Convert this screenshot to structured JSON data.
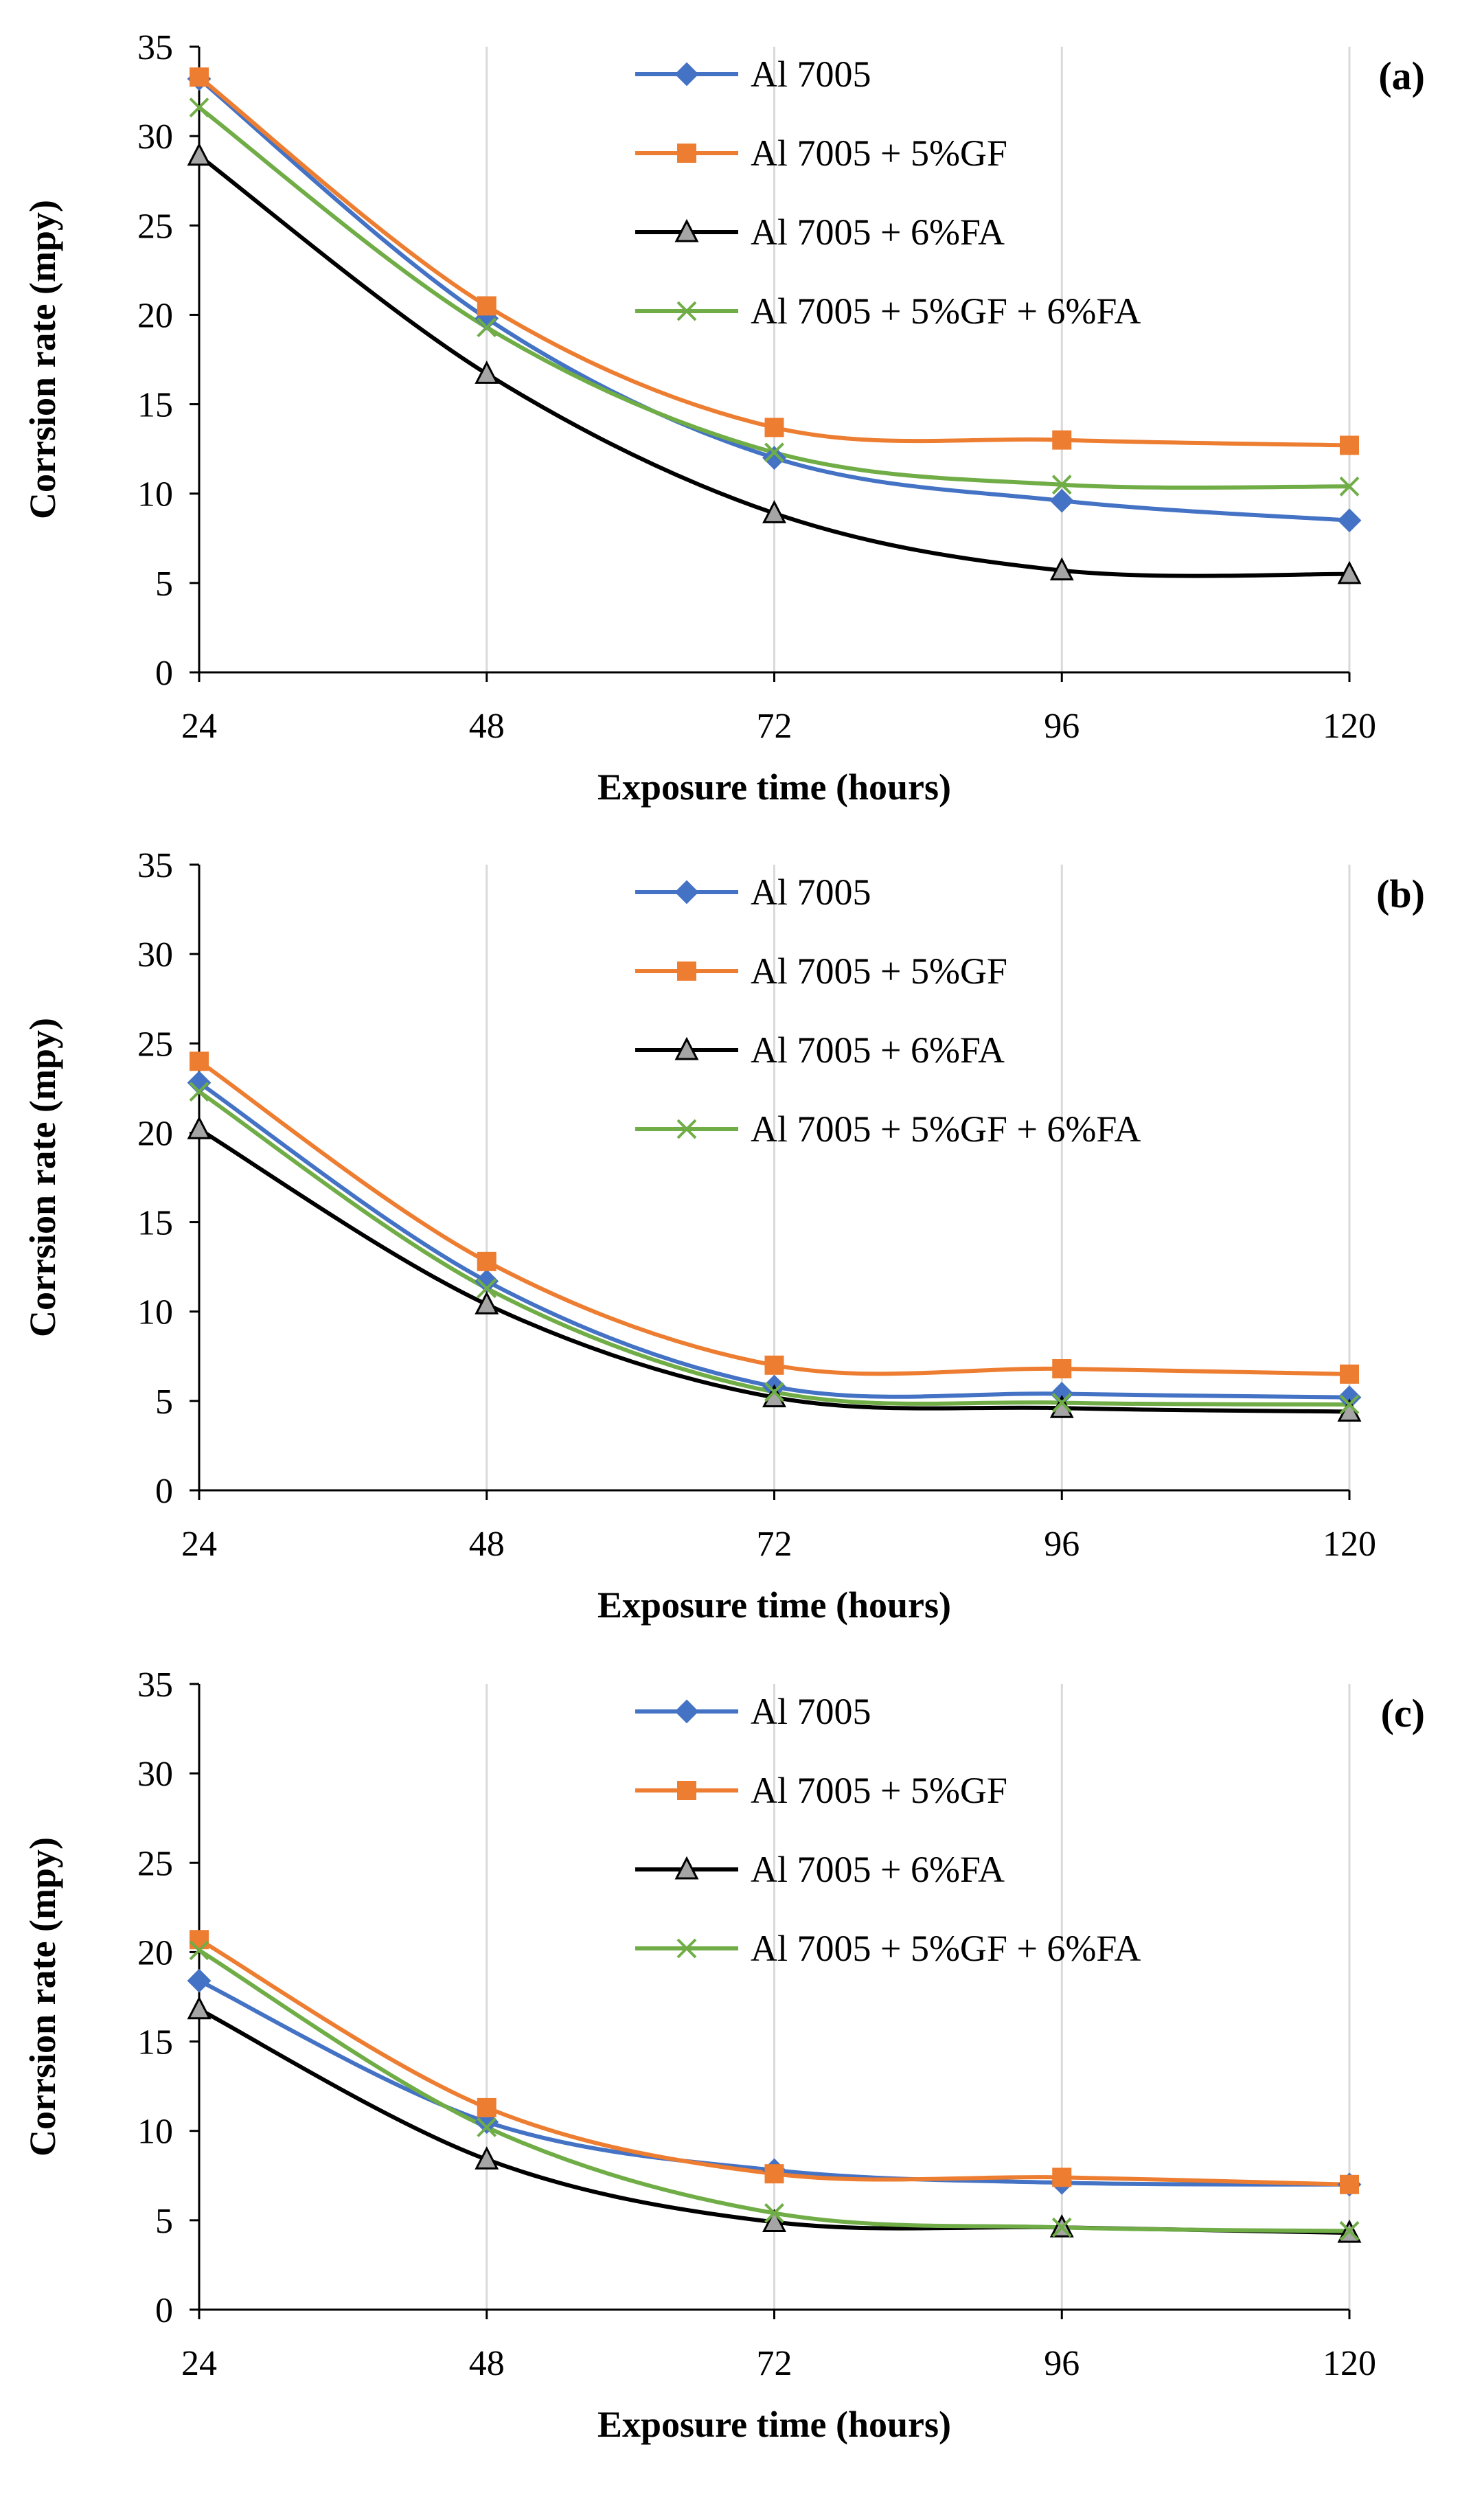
{
  "figure": {
    "panels": [
      "a",
      "b",
      "c"
    ],
    "series_colors": {
      "Al 7005": "#4472C4",
      "Al 7005 + 5%GF": "#ED7D31",
      "Al 7005 + 6%FA": "#000000",
      "Al 7005 + 5%GF + 6%FA": "#70AD47"
    },
    "marker_colors": {
      "Al 7005": "#4472C4",
      "Al 7005 + 5%GF": "#ED7D31",
      "Al 7005 + 6%FA": "#A5A5A5",
      "Al 7005 + 5%GF + 6%FA": "#70AD47"
    },
    "markers": {
      "Al 7005": "diamond",
      "Al 7005 + 5%GF": "square",
      "Al 7005 + 6%FA": "triangle",
      "Al 7005 + 5%GF + 6%FA": "x"
    }
  },
  "chart_data": [
    {
      "type": "line",
      "panel_label": "(a)",
      "xlabel": "Exposure time (hours)",
      "ylabel": "Corrsion rate (mpy)",
      "x": [
        24,
        48,
        72,
        96,
        120
      ],
      "ylim": [
        0,
        35
      ],
      "yticks": [
        0,
        5,
        10,
        15,
        20,
        25,
        30,
        35
      ],
      "grid": "vertical",
      "legend": "top-center",
      "series": [
        {
          "name": "Al 7005",
          "values": [
            33.2,
            19.8,
            12.0,
            9.6,
            8.5
          ]
        },
        {
          "name": "Al 7005 + 5%GF",
          "values": [
            33.3,
            20.5,
            13.7,
            13.0,
            12.7
          ]
        },
        {
          "name": "Al 7005 + 6%FA",
          "values": [
            28.9,
            16.7,
            8.9,
            5.7,
            5.5
          ]
        },
        {
          "name": "Al 7005 + 5%GF + 6%FA",
          "values": [
            31.6,
            19.3,
            12.3,
            10.5,
            10.4
          ]
        }
      ]
    },
    {
      "type": "line",
      "panel_label": "(b)",
      "xlabel": "Exposure time (hours)",
      "ylabel": "Corrsion rate (mpy)",
      "x": [
        24,
        48,
        72,
        96,
        120
      ],
      "ylim": [
        0,
        35
      ],
      "yticks": [
        0,
        5,
        10,
        15,
        20,
        25,
        30,
        35
      ],
      "grid": "vertical",
      "legend": "top-center",
      "series": [
        {
          "name": "Al 7005",
          "values": [
            22.8,
            11.7,
            5.8,
            5.4,
            5.2
          ]
        },
        {
          "name": "Al 7005 + 5%GF",
          "values": [
            24.0,
            12.8,
            7.0,
            6.8,
            6.5
          ]
        },
        {
          "name": "Al 7005 + 6%FA",
          "values": [
            20.2,
            10.4,
            5.2,
            4.6,
            4.4
          ]
        },
        {
          "name": "Al 7005 + 5%GF + 6%FA",
          "values": [
            22.3,
            11.3,
            5.5,
            4.9,
            4.8
          ]
        }
      ]
    },
    {
      "type": "line",
      "panel_label": "(c)",
      "xlabel": "Exposure time (hours)",
      "ylabel": "Corrsion rate (mpy)",
      "x": [
        24,
        48,
        72,
        96,
        120
      ],
      "ylim": [
        0,
        35
      ],
      "yticks": [
        0,
        5,
        10,
        15,
        20,
        25,
        30,
        35
      ],
      "grid": "vertical",
      "legend": "top-center",
      "series": [
        {
          "name": "Al 7005",
          "values": [
            18.4,
            10.5,
            7.8,
            7.1,
            7.0
          ]
        },
        {
          "name": "Al 7005 + 5%GF",
          "values": [
            20.7,
            11.3,
            7.6,
            7.4,
            7.0
          ]
        },
        {
          "name": "Al 7005 + 6%FA",
          "values": [
            16.8,
            8.4,
            4.9,
            4.6,
            4.3
          ]
        },
        {
          "name": "Al 7005 + 5%GF + 6%FA",
          "values": [
            20.1,
            10.2,
            5.4,
            4.6,
            4.4
          ]
        }
      ]
    }
  ]
}
